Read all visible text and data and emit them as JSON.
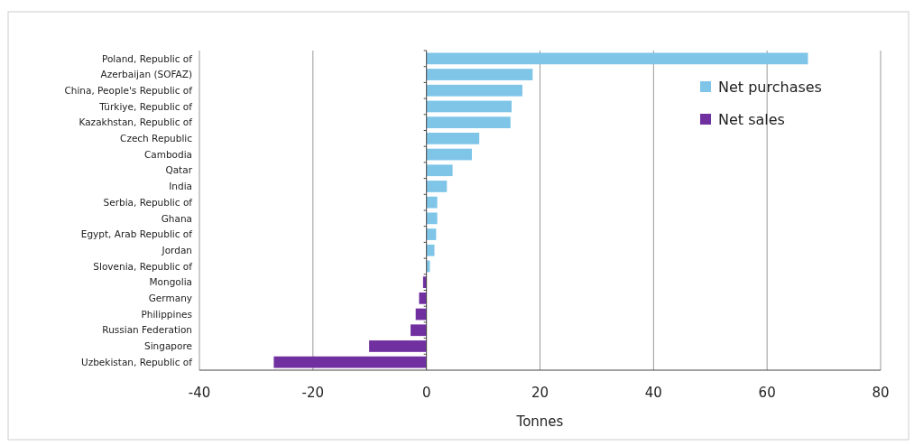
{
  "chart_data": {
    "type": "bar",
    "orientation": "horizontal",
    "xlabel": "Tonnes",
    "categories": [
      "Poland, Republic of",
      "Azerbaijan (SOFAZ)",
      "China, People's Republic of",
      "Türkiye, Republic of",
      "Kazakhstan, Republic of",
      "Czech Republic",
      "Cambodia",
      "Qatar",
      "India",
      "Serbia, Republic of",
      "Ghana",
      "Egypt, Arab Republic of",
      "Jordan",
      "Slovenia, Republic of",
      "Mongolia",
      "Germany",
      "Philippines",
      "Russian Federation",
      "Singapore",
      "Uzbekistan, Republic of"
    ],
    "series": [
      {
        "name": "Net purchases",
        "color": "#7ec5e8",
        "values": [
          67.2,
          18.7,
          16.9,
          15.0,
          14.8,
          9.3,
          8.0,
          4.6,
          3.6,
          1.9,
          1.9,
          1.7,
          1.4,
          0.6,
          null,
          null,
          null,
          null,
          null,
          null
        ]
      },
      {
        "name": "Net sales",
        "color": "#7030a0",
        "values": [
          null,
          null,
          null,
          null,
          null,
          null,
          null,
          null,
          null,
          null,
          null,
          null,
          null,
          null,
          -0.6,
          -1.3,
          -1.9,
          -2.8,
          -10.1,
          -26.9
        ]
      }
    ],
    "xlim": [
      -40,
      80
    ],
    "xticks": [
      -40,
      -20,
      0,
      20,
      40,
      60,
      80
    ],
    "grid": "x",
    "legend": "top right"
  }
}
